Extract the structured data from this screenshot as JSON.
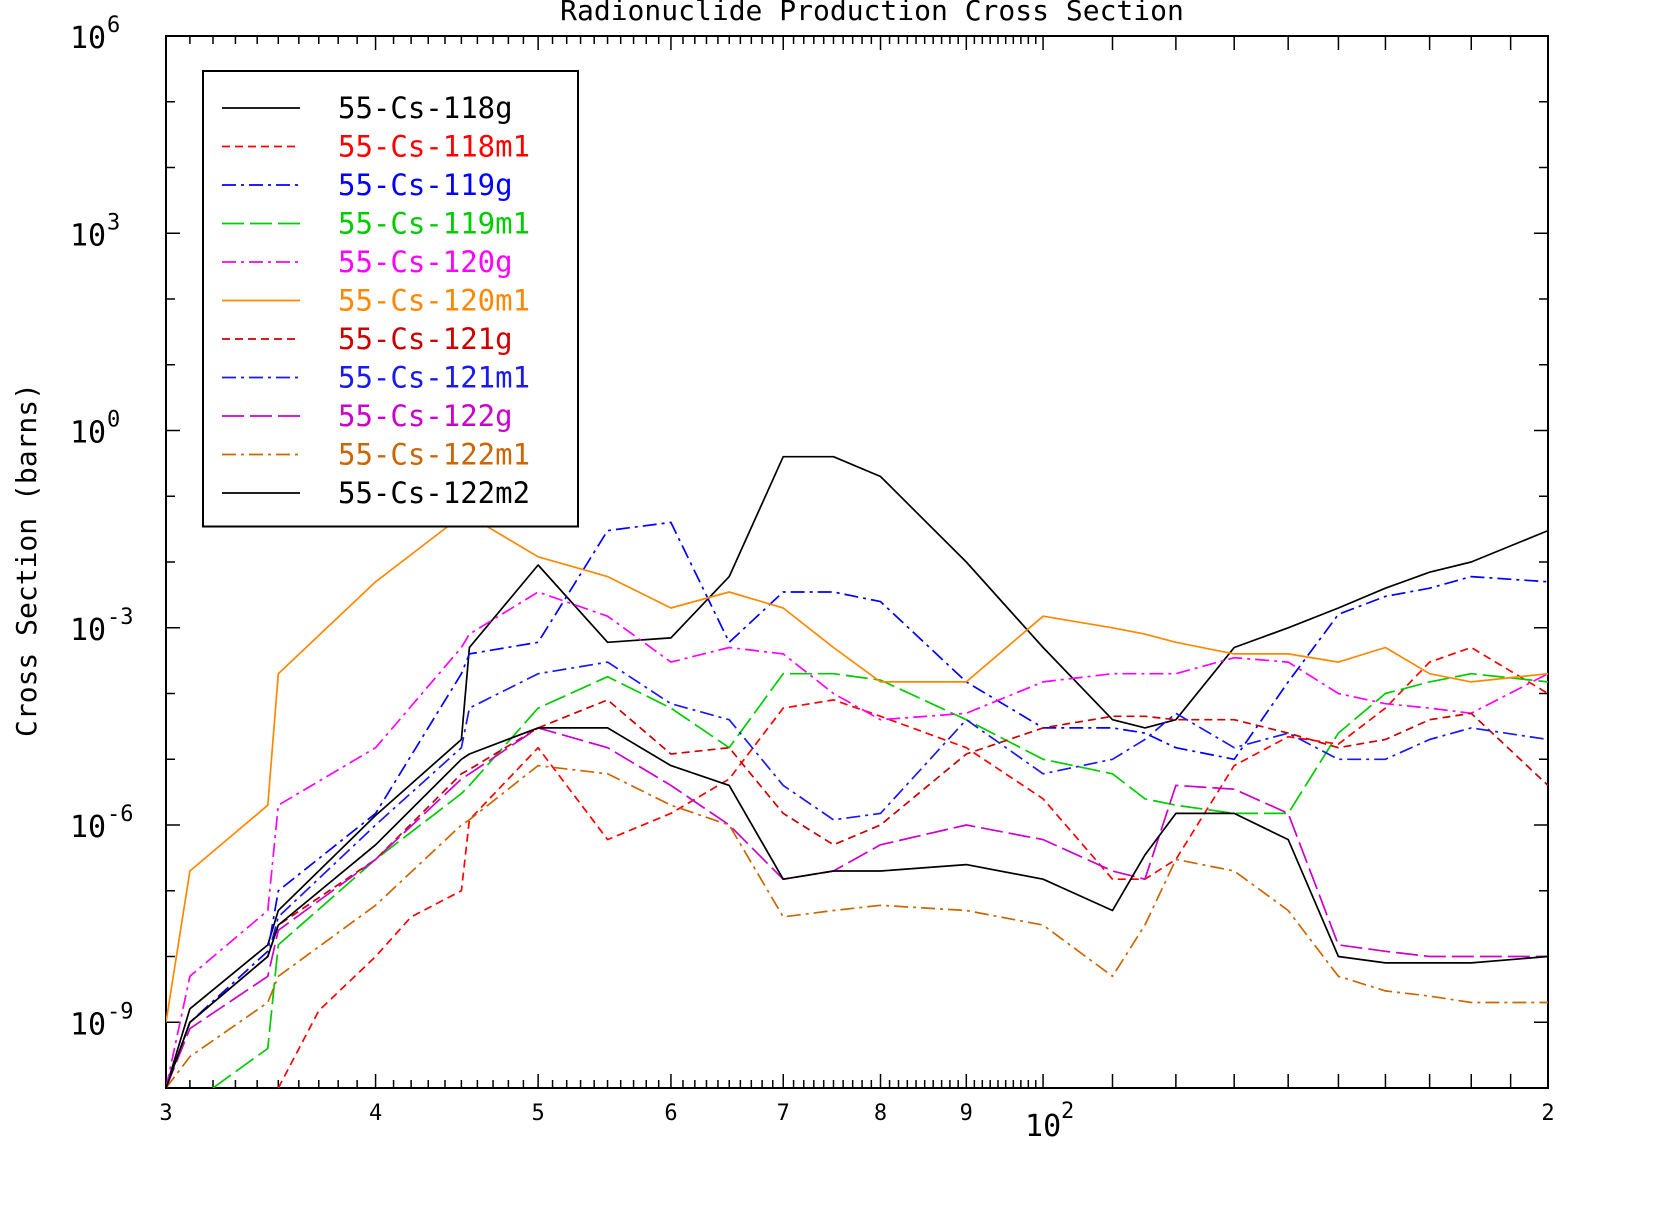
{
  "chart_data": {
    "type": "line",
    "title": "Radionuclide Production Cross Section",
    "xlabel": "",
    "ylabel": "Cross Section (barns)",
    "x_scale": "log",
    "y_scale": "log",
    "xlim": [
      30,
      200
    ],
    "ylim": [
      1e-10,
      1000000.0
    ],
    "x_ticks": [
      {
        "value": 30,
        "label": "3"
      },
      {
        "value": 40,
        "label": "4"
      },
      {
        "value": 50,
        "label": "5"
      },
      {
        "value": 60,
        "label": "6"
      },
      {
        "value": 70,
        "label": "7"
      },
      {
        "value": 80,
        "label": "8"
      },
      {
        "value": 90,
        "label": "9"
      },
      {
        "value": 200,
        "label": "2"
      }
    ],
    "x_decade_label": {
      "value": 100,
      "base": "10",
      "exp": "2"
    },
    "y_ticks": [
      {
        "value": 1000000.0,
        "base": "10",
        "exp": "6"
      },
      {
        "value": 1000.0,
        "base": "10",
        "exp": "3"
      },
      {
        "value": 1,
        "base": "10",
        "exp": "0"
      },
      {
        "value": 0.001,
        "base": "10",
        "exp": "-3"
      },
      {
        "value": 1e-06,
        "base": "10",
        "exp": "-6"
      },
      {
        "value": 1e-09,
        "base": "10",
        "exp": "-9"
      }
    ],
    "grid": false,
    "legend_position": "top-left",
    "series": [
      {
        "name": "55-Cs-118g",
        "color": "#000000",
        "dash": "solid",
        "x": [
          30,
          31,
          34.5,
          35,
          40,
          45,
          45.5,
          50,
          55,
          60,
          65,
          70,
          75,
          80,
          90,
          100,
          110,
          115,
          120,
          130,
          140,
          150,
          160,
          170,
          180,
          200
        ],
        "y": [
          1e-10,
          1.6e-09,
          1.5e-08,
          5e-08,
          1.4e-06,
          2e-05,
          0.0005,
          0.009,
          0.0006,
          0.0007,
          0.006,
          0.4,
          0.4,
          0.2,
          0.01,
          0.0005,
          4e-05,
          3e-05,
          4e-05,
          0.0005,
          0.001,
          0.002,
          0.004,
          0.007,
          0.01,
          0.03
        ]
      },
      {
        "name": "55-Cs-118m1",
        "color": "#ff0000",
        "dash": "8,5",
        "x": [
          35,
          37,
          40,
          42,
          45,
          45.5,
          50,
          55,
          60,
          65,
          70,
          75,
          80,
          90,
          100,
          110,
          115,
          120,
          130,
          140,
          150,
          160,
          170,
          180,
          200
        ],
        "y": [
          1e-10,
          1.5e-09,
          1e-08,
          4e-08,
          1e-07,
          1.2e-06,
          1.5e-05,
          6e-07,
          1.5e-06,
          5e-06,
          6e-05,
          8e-05,
          4.5e-05,
          1.5e-05,
          2.5e-06,
          1.5e-07,
          1.5e-07,
          3e-07,
          8e-06,
          2.2e-05,
          1.7e-05,
          6e-05,
          0.0003,
          0.0005,
          0.0001
        ]
      },
      {
        "name": "55-Cs-119g",
        "color": "#0000ff",
        "dash": "14,5,3,5",
        "x": [
          30,
          31,
          34.5,
          35,
          40,
          45,
          45.5,
          50,
          55,
          60,
          65,
          70,
          75,
          80,
          90,
          100,
          110,
          115,
          120,
          130,
          140,
          150,
          160,
          170,
          180,
          200
        ],
        "y": [
          1e-10,
          1e-09,
          1.2e-08,
          1e-07,
          1.5e-06,
          0.0002,
          0.0004,
          0.0006,
          0.03,
          0.04,
          0.0006,
          0.0035,
          0.0035,
          0.0025,
          0.00015,
          3e-05,
          3e-05,
          2.5e-05,
          1.5e-05,
          1e-05,
          0.00015,
          0.0016,
          0.003,
          0.004,
          0.006,
          0.005
        ]
      },
      {
        "name": "55-Cs-119m1",
        "color": "#00cc00",
        "dash": "22,6",
        "x": [
          32,
          34.5,
          35,
          40,
          45,
          45.5,
          50,
          55,
          60,
          65,
          70,
          75,
          80,
          90,
          100,
          110,
          115,
          120,
          130,
          140,
          150,
          160,
          170,
          180,
          200
        ],
        "y": [
          1e-10,
          4e-10,
          1.5e-08,
          3e-07,
          3e-06,
          4e-06,
          6e-05,
          0.00018,
          6e-05,
          1.5e-05,
          0.0002,
          0.0002,
          0.00016,
          4e-05,
          1e-05,
          6e-06,
          2.5e-06,
          2e-06,
          1.5e-06,
          1.5e-06,
          2.5e-05,
          0.0001,
          0.00015,
          0.0002,
          0.00015
        ]
      },
      {
        "name": "55-Cs-120g",
        "color": "#ff00ff",
        "dash": "14,5,3,5",
        "x": [
          30,
          31,
          34.5,
          35,
          40,
          45,
          45.5,
          50,
          55,
          60,
          65,
          70,
          75,
          80,
          90,
          100,
          110,
          115,
          120,
          130,
          140,
          150,
          160,
          170,
          180,
          200
        ],
        "y": [
          1e-10,
          5e-09,
          5e-08,
          2e-06,
          1.5e-05,
          0.0005,
          0.0008,
          0.0035,
          0.0015,
          0.0003,
          0.0005,
          0.0004,
          0.0001,
          4e-05,
          5e-05,
          0.00015,
          0.0002,
          0.0002,
          0.0002,
          0.00035,
          0.0003,
          0.0001,
          7e-05,
          6e-05,
          5e-05,
          0.0002
        ]
      },
      {
        "name": "55-Cs-120m1",
        "color": "#ff8800",
        "dash": "solid",
        "x": [
          30,
          31,
          34.5,
          35,
          40,
          45,
          45.5,
          50,
          55,
          60,
          65,
          70,
          75,
          80,
          90,
          100,
          110,
          115,
          120,
          130,
          140,
          150,
          160,
          170,
          180,
          200
        ],
        "y": [
          1e-09,
          2e-07,
          2e-06,
          0.0002,
          0.005,
          0.05,
          0.05,
          0.012,
          0.006,
          0.002,
          0.0035,
          0.002,
          0.0005,
          0.00015,
          0.00015,
          0.0015,
          0.001,
          0.0008,
          0.0006,
          0.0004,
          0.0004,
          0.0003,
          0.0005,
          0.0002,
          0.00015,
          0.0002
        ]
      },
      {
        "name": "55-Cs-121g",
        "color": "#cc0000",
        "dash": "8,5",
        "x": [
          30,
          31,
          34.5,
          35,
          40,
          45,
          45.5,
          50,
          55,
          60,
          65,
          70,
          75,
          80,
          90,
          100,
          110,
          115,
          120,
          130,
          140,
          150,
          160,
          170,
          180,
          200
        ],
        "y": [
          1e-10,
          1e-09,
          1e-08,
          3e-08,
          3e-07,
          6e-06,
          7e-06,
          3e-05,
          8e-05,
          1.2e-05,
          1.5e-05,
          1.5e-06,
          5e-07,
          1e-06,
          1.2e-05,
          3e-05,
          4.5e-05,
          4.5e-05,
          4e-05,
          4e-05,
          2.5e-05,
          1.5e-05,
          2e-05,
          4e-05,
          5e-05,
          4e-06
        ]
      },
      {
        "name": "55-Cs-121m1",
        "color": "#1a1aee",
        "dash": "14,5,3,5",
        "x": [
          30,
          31,
          34.5,
          35,
          40,
          45,
          45.5,
          50,
          55,
          60,
          65,
          70,
          75,
          80,
          90,
          100,
          110,
          115,
          120,
          130,
          140,
          150,
          160,
          170,
          180,
          200
        ],
        "y": [
          1e-10,
          1e-09,
          1e-08,
          4e-08,
          1e-06,
          1.5e-05,
          6e-05,
          0.0002,
          0.0003,
          7e-05,
          4e-05,
          4e-06,
          1.2e-06,
          1.5e-06,
          4e-05,
          6e-06,
          1e-05,
          2e-05,
          5e-05,
          1.5e-05,
          2.5e-05,
          1e-05,
          1e-05,
          2e-05,
          3e-05,
          2e-05
        ]
      },
      {
        "name": "55-Cs-122g",
        "color": "#cc00cc",
        "dash": "22,6",
        "x": [
          30,
          31,
          34.5,
          35,
          40,
          45,
          45.5,
          50,
          55,
          60,
          65,
          70,
          75,
          80,
          90,
          100,
          110,
          115,
          120,
          130,
          140,
          150,
          160,
          170,
          180,
          200
        ],
        "y": [
          1e-10,
          8e-10,
          5e-09,
          2.5e-08,
          3e-07,
          5e-06,
          6e-06,
          3e-05,
          1.5e-05,
          4e-06,
          1e-06,
          1.5e-07,
          2e-07,
          5e-07,
          1e-06,
          6e-07,
          2e-07,
          1.5e-07,
          4e-06,
          3.5e-06,
          1.5e-06,
          1.5e-08,
          1.2e-08,
          1e-08,
          1e-08,
          1e-08
        ]
      },
      {
        "name": "55-Cs-122m1",
        "color": "#cc6600",
        "dash": "14,5,3,5",
        "x": [
          30,
          31,
          34.5,
          35,
          40,
          45,
          45.5,
          50,
          55,
          60,
          65,
          70,
          75,
          80,
          90,
          100,
          110,
          115,
          120,
          130,
          140,
          150,
          160,
          170,
          180,
          200
        ],
        "y": [
          1e-10,
          3e-10,
          2e-09,
          5e-09,
          6e-08,
          1e-06,
          1.2e-06,
          8e-06,
          6e-06,
          2e-06,
          1e-06,
          4e-08,
          5e-08,
          6e-08,
          5e-08,
          3e-08,
          5e-09,
          3e-08,
          3e-07,
          2e-07,
          5e-08,
          5e-09,
          3e-09,
          2.5e-09,
          2e-09,
          2e-09
        ]
      },
      {
        "name": "55-Cs-122m2",
        "color": "#000000",
        "dash": "solid",
        "x": [
          30,
          31,
          34.5,
          35,
          40,
          45,
          45.5,
          50,
          55,
          60,
          65,
          70,
          75,
          80,
          90,
          100,
          110,
          115,
          120,
          130,
          140,
          150,
          160,
          170,
          180,
          200
        ],
        "y": [
          1e-10,
          1e-09,
          1e-08,
          3e-08,
          5e-07,
          1e-05,
          1.2e-05,
          3e-05,
          3e-05,
          8e-06,
          4e-06,
          1.5e-07,
          2e-07,
          2e-07,
          2.5e-07,
          1.5e-07,
          5e-08,
          3.5e-07,
          1.5e-06,
          1.5e-06,
          6e-07,
          1e-08,
          8e-09,
          8e-09,
          8e-09,
          1e-08
        ]
      }
    ]
  }
}
